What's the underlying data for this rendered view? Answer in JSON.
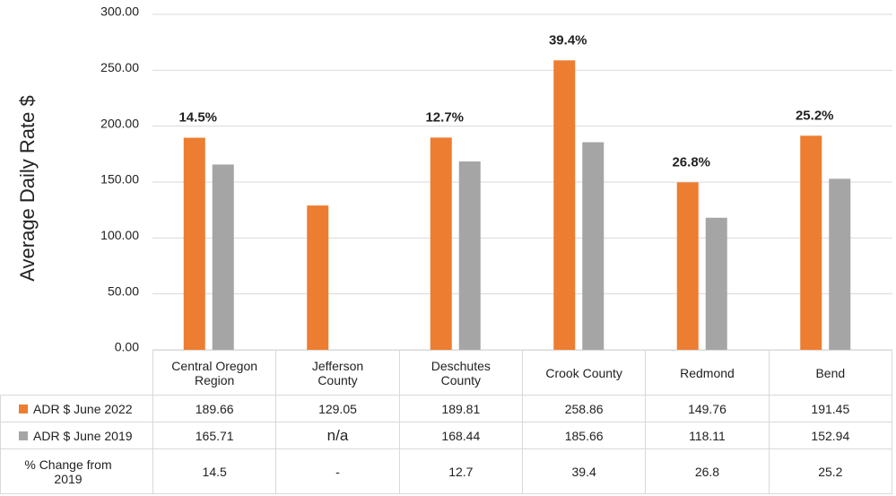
{
  "chart_data": {
    "type": "bar",
    "y_label": "Average Daily Rate $",
    "categories": [
      "Central Oregon Region",
      "Jefferson County",
      "Deschutes County",
      "Crook County",
      "Redmond",
      "Bend"
    ],
    "series": [
      {
        "name": "ADR $ June 2022",
        "color": "#ed7d31",
        "values": [
          189.66,
          129.05,
          189.81,
          258.86,
          149.76,
          191.45
        ]
      },
      {
        "name": "ADR $ June 2019",
        "color": "#a5a5a5",
        "values": [
          165.71,
          null,
          168.44,
          185.66,
          118.11,
          152.94
        ],
        "null_label": "n/a"
      }
    ],
    "change": {
      "name": "% Change from 2019",
      "values": [
        14.5,
        null,
        12.7,
        39.4,
        26.8,
        25.2
      ],
      "value_labels": [
        "14.5%",
        null,
        "12.7%",
        "39.4%",
        "26.8%",
        "25.2%"
      ],
      "null_label": "-"
    },
    "ylim": [
      0,
      300
    ],
    "yticks": [
      {
        "value": 0,
        "label": "0.00"
      },
      {
        "value": 50,
        "label": "50.00"
      },
      {
        "value": 100,
        "label": "100.00"
      },
      {
        "value": 150,
        "label": "150.00"
      },
      {
        "value": 200,
        "label": "200.00"
      },
      {
        "value": 250,
        "label": "250.00"
      },
      {
        "value": 300,
        "label": "300.00"
      }
    ],
    "grid": true
  }
}
